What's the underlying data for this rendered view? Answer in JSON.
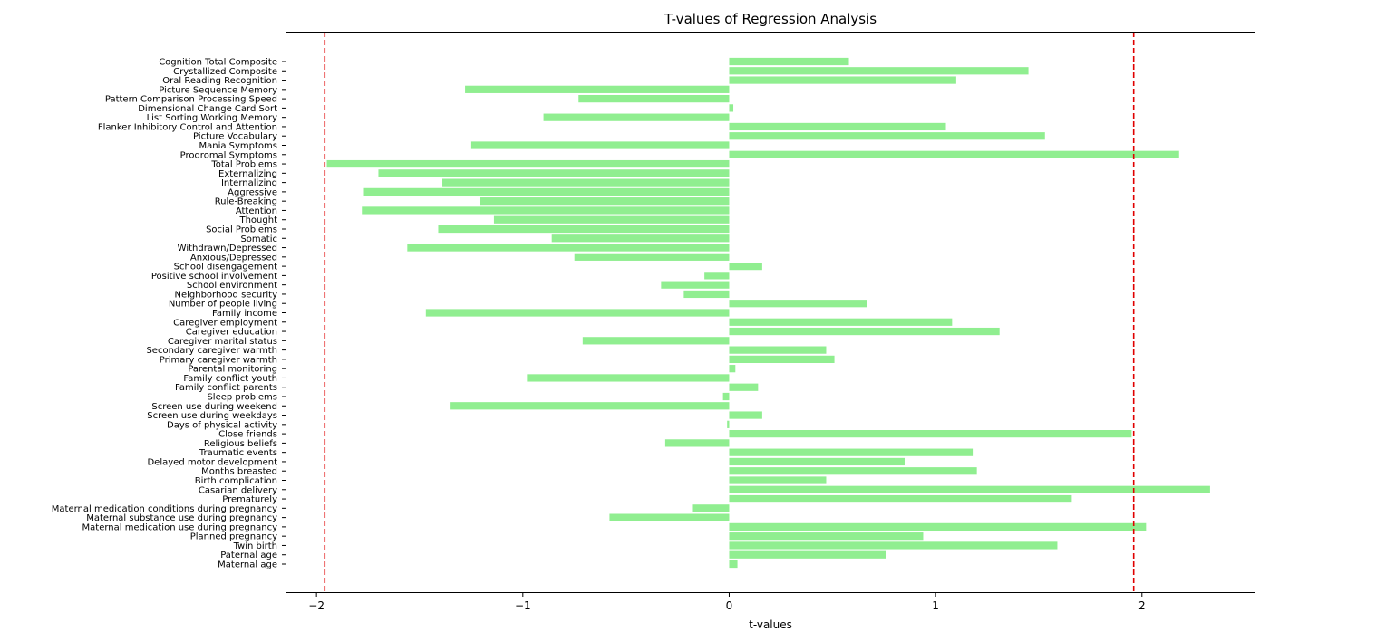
{
  "chart_data": {
    "type": "bar",
    "orientation": "horizontal",
    "title": "T-values of Regression Analysis",
    "xlabel": "t-values",
    "ylabel": "",
    "xlim": [
      -2.15,
      2.55
    ],
    "xticks": [
      -2,
      -1,
      0,
      1,
      2
    ],
    "xtick_labels": [
      "−2",
      "−1",
      "0",
      "1",
      "2"
    ],
    "bar_color": "#90ee90",
    "threshold_color": "#e00000",
    "thresholds": [
      -1.96,
      1.96
    ],
    "grid": false,
    "categories": [
      "Cognition Total Composite",
      "Crystallized Composite",
      "Oral Reading Recognition",
      "Picture Sequence Memory",
      "Pattern Comparison Processing Speed",
      "Dimensional Change Card Sort",
      "List Sorting Working Memory",
      "Flanker Inhibitory Control and Attention",
      "Picture Vocabulary",
      "Mania Symptoms",
      "Prodromal Symptoms",
      "Total Problems",
      "Externalizing",
      "Internalizing",
      "Aggressive",
      "Rule-Breaking",
      "Attention",
      "Thought",
      "Social Problems",
      "Somatic",
      "Withdrawn/Depressed",
      "Anxious/Depressed",
      "School disengagement",
      "Positive school involvement",
      "School environment",
      "Neighborhood security",
      "Number of people living",
      "Family income",
      "Caregiver employment",
      "Caregiver education",
      "Caregiver marital status",
      "Secondary caregiver warmth",
      "Primary caregiver warmth",
      "Parental monitoring",
      "Family conflict youth",
      "Family conflict parents",
      "Sleep problems",
      "Screen use during weekend",
      "Screen use during weekdays",
      "Days of physical activity",
      "Close friends",
      "Religious beliefs",
      "Traumatic events",
      "Delayed motor development",
      "Months breasted",
      "Birth complication",
      "Casarian delivery",
      "Prematurely",
      "Maternal medication conditions during pregnancy",
      "Maternal substance use during pregnancy",
      "Maternal medication use during pregnancy",
      "Planned pregnancy",
      "Twin birth",
      "Paternal age",
      "Maternal age"
    ],
    "values": [
      0.58,
      1.45,
      1.1,
      -1.28,
      -0.73,
      0.02,
      -0.9,
      1.05,
      1.53,
      -1.25,
      2.18,
      -1.95,
      -1.7,
      -1.39,
      -1.77,
      -1.21,
      -1.78,
      -1.14,
      -1.41,
      -0.86,
      -1.56,
      -0.75,
      0.16,
      -0.12,
      -0.33,
      -0.22,
      0.67,
      -1.47,
      1.08,
      1.31,
      -0.71,
      0.47,
      0.51,
      0.03,
      -0.98,
      0.14,
      -0.03,
      -1.35,
      0.16,
      -0.01,
      1.95,
      -0.31,
      1.18,
      0.85,
      1.2,
      0.47,
      2.33,
      1.66,
      -0.18,
      -0.58,
      2.02,
      0.94,
      1.59,
      0.76,
      0.04
    ]
  }
}
